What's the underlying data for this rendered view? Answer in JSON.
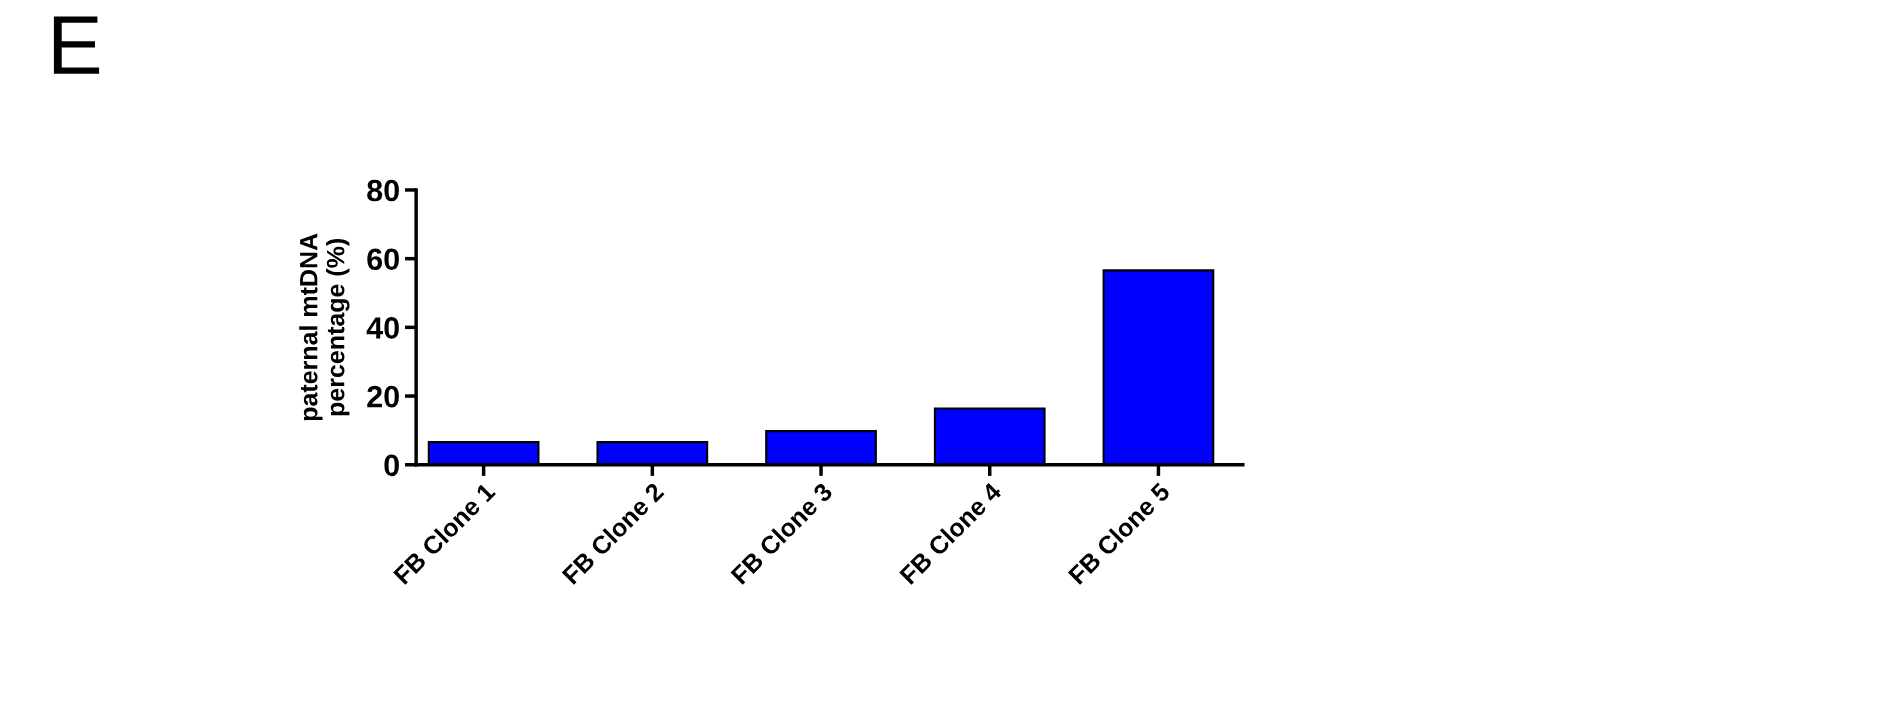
{
  "chart_data": {
    "type": "bar",
    "annotations": [
      "E"
    ],
    "ylabel": "paternal mtDNA\npercentage (%)",
    "categories": [
      "FB Clone 1",
      "FB Clone 2",
      "FB Clone 3",
      "FB Clone 4",
      "FB Clone 5"
    ],
    "values": [
      6.6,
      6.6,
      9.8,
      16.4,
      56.6
    ],
    "color": "#0000ff",
    "ylim": [
      0,
      80
    ],
    "yticks": [
      0,
      20,
      40,
      60,
      80
    ],
    "grid": false
  }
}
